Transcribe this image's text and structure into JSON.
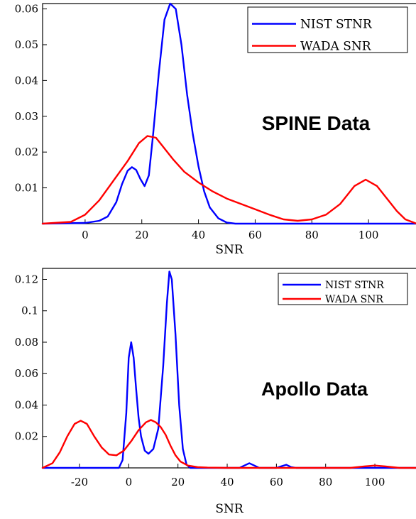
{
  "chart_data": [
    {
      "type": "line",
      "annotation": "SPINE Data",
      "xlabel": "SNR",
      "ylabel": "",
      "xlim": [
        -15,
        117
      ],
      "ylim": [
        0,
        0.0615
      ],
      "xticks": [
        0,
        20,
        40,
        60,
        80,
        100
      ],
      "xtick_labels": [
        "0",
        "20",
        "40",
        "60",
        "80",
        "100"
      ],
      "yticks": [
        0.01,
        0.02,
        0.03,
        0.04,
        0.05,
        0.06
      ],
      "ytick_labels": [
        "0.01",
        "0.02",
        "0.03",
        "0.04",
        "0.05",
        "0.06"
      ],
      "grid": false,
      "legend_position": "top-right",
      "series": [
        {
          "name": "NIST STNR",
          "color": "#0000ff",
          "points": [
            [
              -15,
              0
            ],
            [
              0,
              0.0002
            ],
            [
              5,
              0.0008
            ],
            [
              8,
              0.002
            ],
            [
              11,
              0.006
            ],
            [
              13,
              0.011
            ],
            [
              15,
              0.0148
            ],
            [
              16.5,
              0.0158
            ],
            [
              18,
              0.015
            ],
            [
              19.5,
              0.0125
            ],
            [
              21,
              0.0105
            ],
            [
              22.5,
              0.0135
            ],
            [
              24,
              0.025
            ],
            [
              26,
              0.042
            ],
            [
              28,
              0.057
            ],
            [
              30,
              0.0615
            ],
            [
              32,
              0.06
            ],
            [
              34,
              0.05
            ],
            [
              36,
              0.036
            ],
            [
              38,
              0.025
            ],
            [
              40,
              0.016
            ],
            [
              42,
              0.009
            ],
            [
              44,
              0.0045
            ],
            [
              47,
              0.0015
            ],
            [
              50,
              0.0003
            ],
            [
              53,
              0
            ],
            [
              117,
              0
            ]
          ]
        },
        {
          "name": "WADA SNR",
          "color": "#ff0000",
          "points": [
            [
              -15,
              0
            ],
            [
              -5,
              0.0005
            ],
            [
              0,
              0.0025
            ],
            [
              5,
              0.0065
            ],
            [
              10,
              0.012
            ],
            [
              15,
              0.0175
            ],
            [
              19,
              0.0225
            ],
            [
              22,
              0.0245
            ],
            [
              25,
              0.024
            ],
            [
              28,
              0.021
            ],
            [
              31,
              0.018
            ],
            [
              35,
              0.0145
            ],
            [
              40,
              0.0115
            ],
            [
              45,
              0.009
            ],
            [
              50,
              0.007
            ],
            [
              55,
              0.0055
            ],
            [
              60,
              0.004
            ],
            [
              65,
              0.0025
            ],
            [
              70,
              0.0012
            ],
            [
              75,
              0.0008
            ],
            [
              80,
              0.0012
            ],
            [
              85,
              0.0025
            ],
            [
              90,
              0.0055
            ],
            [
              95,
              0.0105
            ],
            [
              99,
              0.0123
            ],
            [
              103,
              0.0105
            ],
            [
              107,
              0.0065
            ],
            [
              110,
              0.0035
            ],
            [
              113,
              0.0012
            ],
            [
              117,
              0
            ]
          ]
        }
      ]
    },
    {
      "type": "line",
      "annotation": "Apollo Data",
      "xlabel": "SNR",
      "ylabel": "",
      "xlim": [
        -35,
        117
      ],
      "ylim": [
        0,
        0.127
      ],
      "xticks": [
        -20,
        0,
        20,
        40,
        60,
        80,
        100
      ],
      "xtick_labels": [
        "-20",
        "0",
        "20",
        "40",
        "60",
        "80",
        "100"
      ],
      "yticks": [
        0.02,
        0.04,
        0.06,
        0.08,
        0.1,
        0.12
      ],
      "ytick_labels": [
        "0.02",
        "0.04",
        "0.06",
        "0.08",
        "0.1",
        "0.12"
      ],
      "grid": false,
      "legend_position": "top-right",
      "series": [
        {
          "name": "NIST STNR",
          "color": "#0000ff",
          "points": [
            [
              -35,
              0
            ],
            [
              -4,
              0
            ],
            [
              -2.5,
              0.005
            ],
            [
              -1,
              0.035
            ],
            [
              0,
              0.07
            ],
            [
              1,
              0.08
            ],
            [
              2,
              0.07
            ],
            [
              3,
              0.05
            ],
            [
              4,
              0.032
            ],
            [
              5,
              0.02
            ],
            [
              6.5,
              0.011
            ],
            [
              8,
              0.009
            ],
            [
              10,
              0.012
            ],
            [
              12,
              0.025
            ],
            [
              14,
              0.065
            ],
            [
              15.5,
              0.105
            ],
            [
              16.5,
              0.125
            ],
            [
              17.5,
              0.12
            ],
            [
              19,
              0.085
            ],
            [
              20.5,
              0.04
            ],
            [
              22,
              0.012
            ],
            [
              23.5,
              0.002
            ],
            [
              25,
              0
            ],
            [
              45,
              0
            ],
            [
              47,
              0.0015
            ],
            [
              49,
              0.003
            ],
            [
              51,
              0.0015
            ],
            [
              53,
              0
            ],
            [
              60,
              0
            ],
            [
              62,
              0.001
            ],
            [
              64,
              0.002
            ],
            [
              66,
              0.0005
            ],
            [
              68,
              0
            ],
            [
              117,
              0
            ]
          ]
        },
        {
          "name": "WADA SNR",
          "color": "#ff0000",
          "points": [
            [
              -35,
              0
            ],
            [
              -31,
              0.003
            ],
            [
              -28,
              0.01
            ],
            [
              -25,
              0.02
            ],
            [
              -22,
              0.028
            ],
            [
              -19.5,
              0.03
            ],
            [
              -17,
              0.028
            ],
            [
              -14,
              0.02
            ],
            [
              -11,
              0.013
            ],
            [
              -8,
              0.0085
            ],
            [
              -5,
              0.008
            ],
            [
              -2,
              0.011
            ],
            [
              1,
              0.017
            ],
            [
              4,
              0.024
            ],
            [
              7,
              0.029
            ],
            [
              9,
              0.0305
            ],
            [
              11,
              0.029
            ],
            [
              13,
              0.026
            ],
            [
              15,
              0.021
            ],
            [
              17,
              0.014
            ],
            [
              19,
              0.008
            ],
            [
              21,
              0.004
            ],
            [
              24,
              0.0015
            ],
            [
              28,
              0.0005
            ],
            [
              32,
              0.0002
            ],
            [
              40,
              0
            ],
            [
              90,
              0
            ],
            [
              96,
              0.001
            ],
            [
              100,
              0.0015
            ],
            [
              104,
              0.001
            ],
            [
              110,
              0
            ],
            [
              117,
              0
            ]
          ]
        }
      ]
    }
  ]
}
